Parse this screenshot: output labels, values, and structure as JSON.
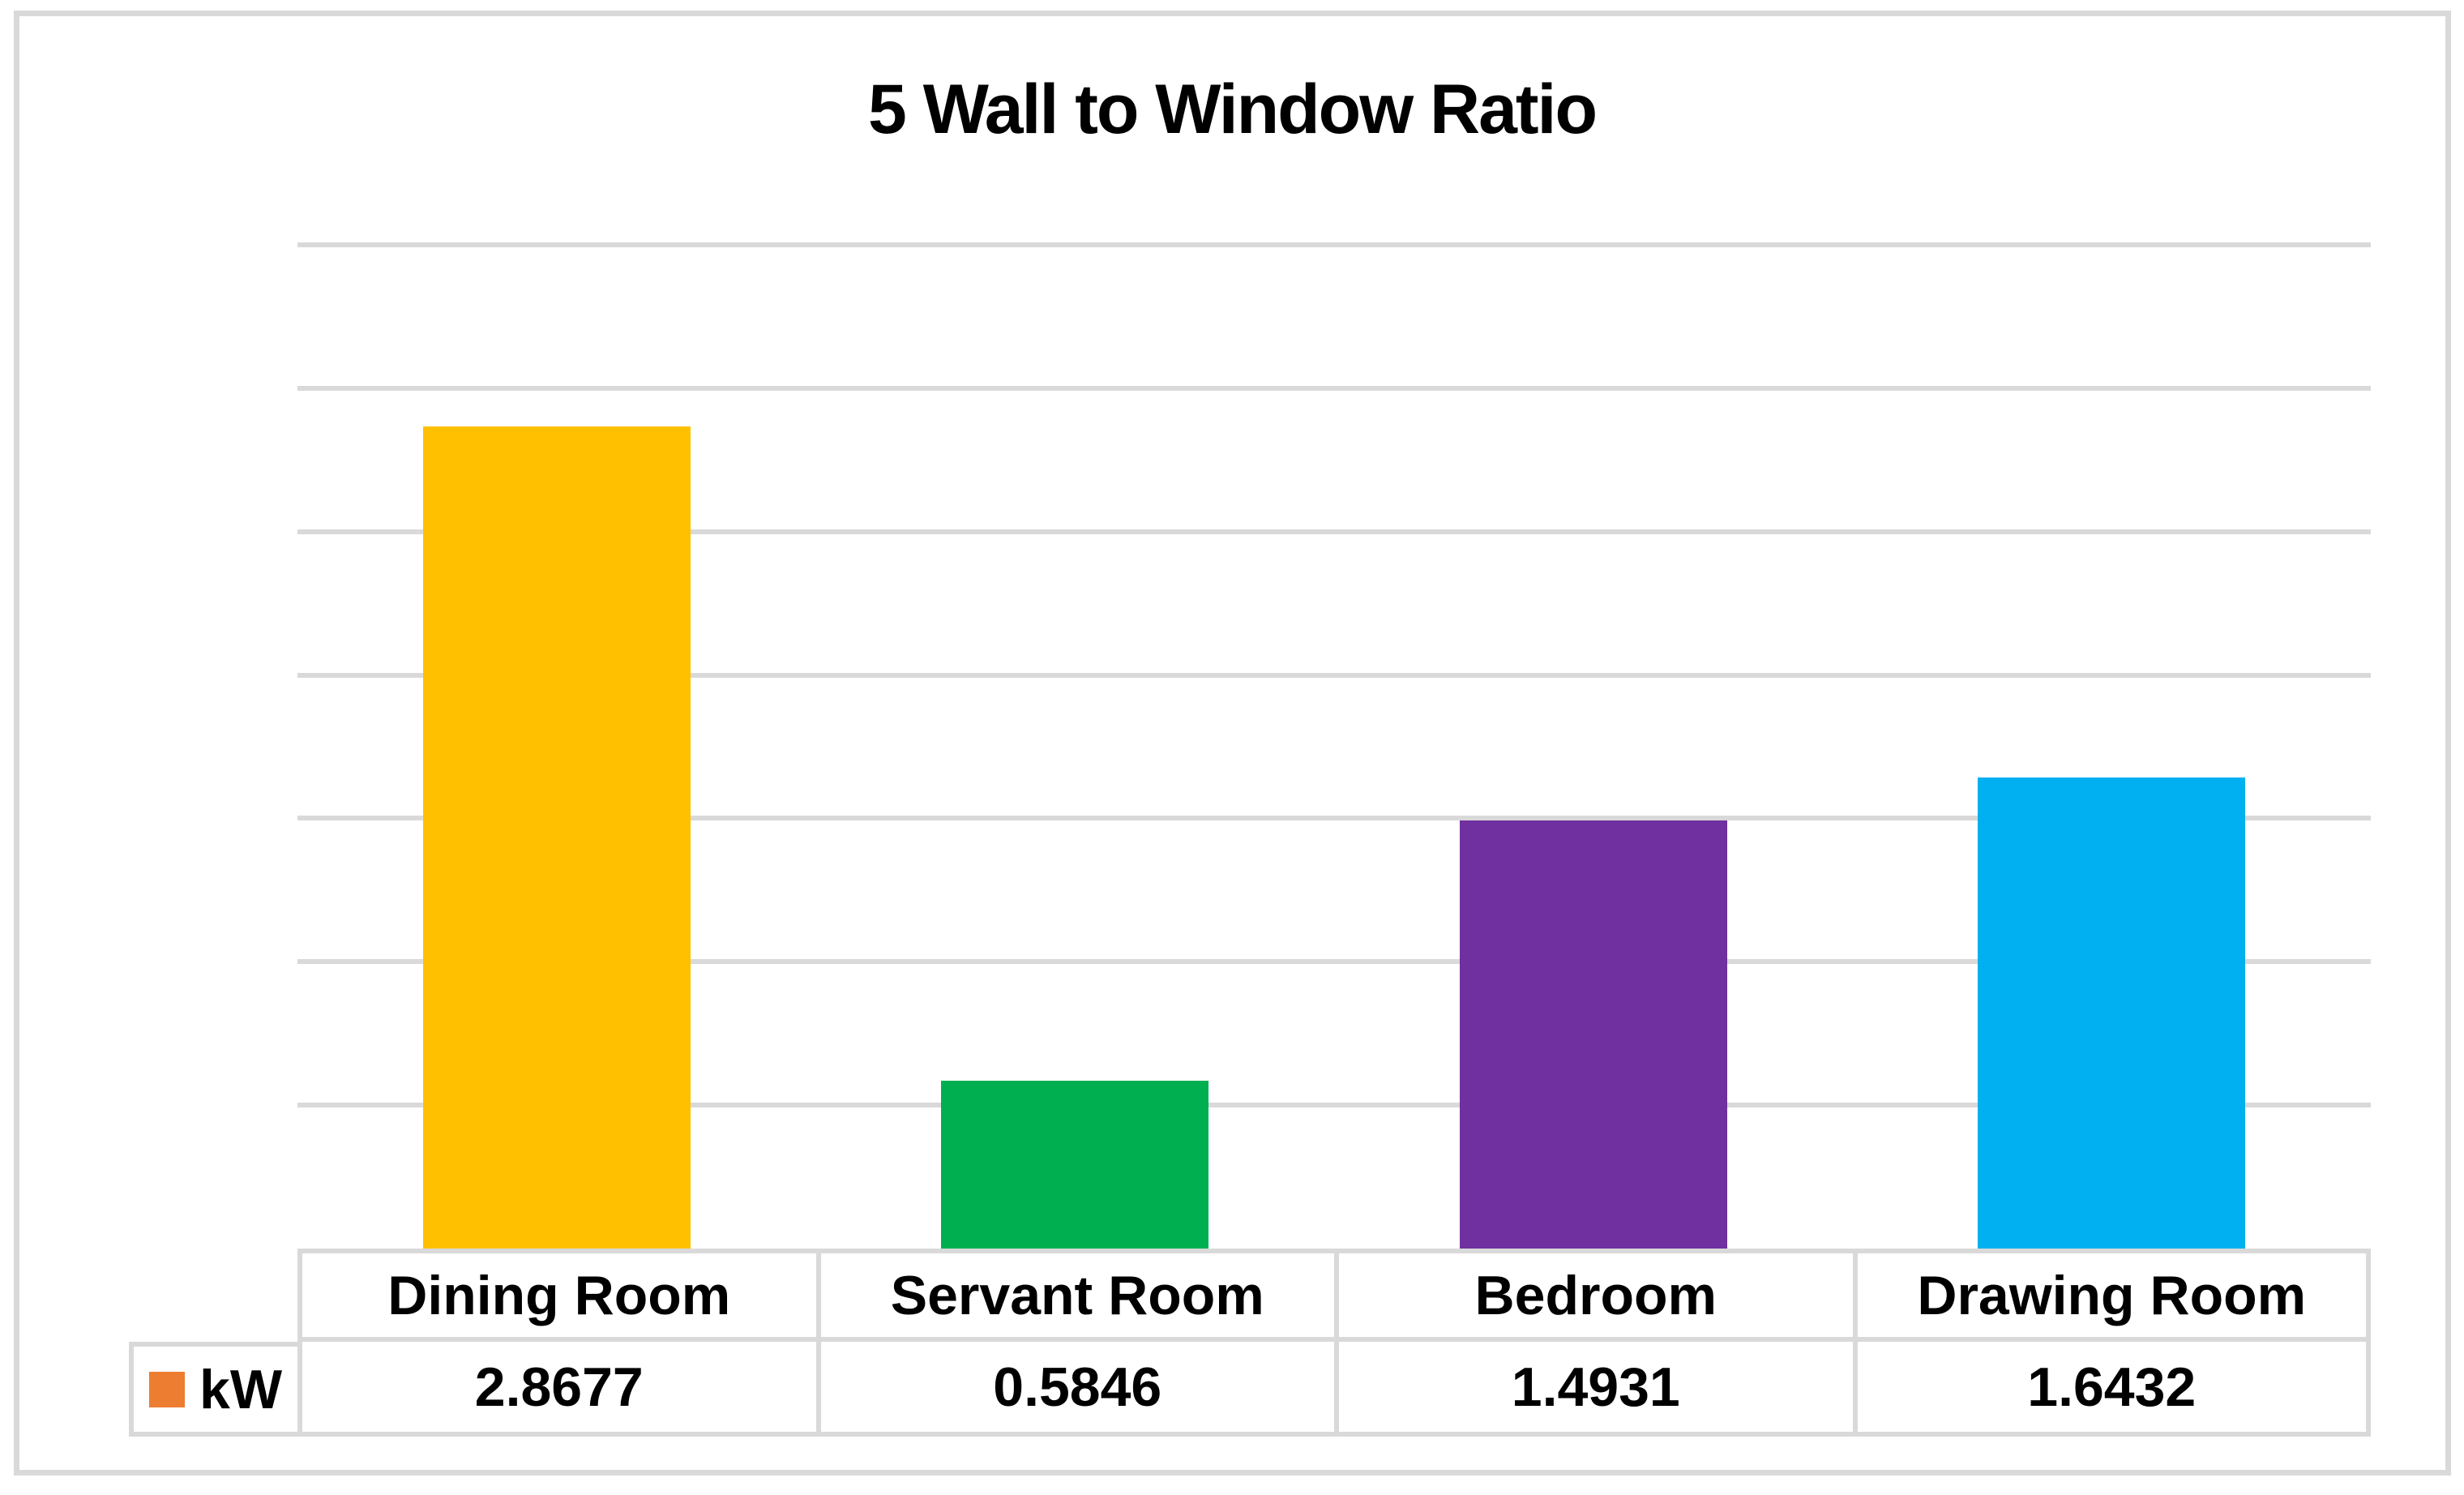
{
  "title": "5 Wall to Window Ratio",
  "chart_data": {
    "type": "bar",
    "title": "5 Wall to Window Ratio",
    "categories": [
      "Dining Room",
      "Servant Room",
      "Bedroom",
      "Drawing Room"
    ],
    "series": [
      {
        "name": "kW",
        "values": [
          2.8677,
          0.5846,
          1.4931,
          1.6432
        ]
      }
    ],
    "point_colors": [
      "#FFC000",
      "#00B050",
      "#7030A0",
      "#00B0F0"
    ],
    "legend_key_color": "#ED7D31",
    "ylim": [
      0,
      3.5
    ],
    "gridline_step": 0.5,
    "y_axis_labels_visible": false,
    "grid": "horizontal gridlines on",
    "legend_position": "data-table row header",
    "data_table_shown": true
  },
  "colors": {
    "grid_and_border": "#D9D9D9",
    "text": "#000000",
    "background": "#FFFFFF"
  }
}
